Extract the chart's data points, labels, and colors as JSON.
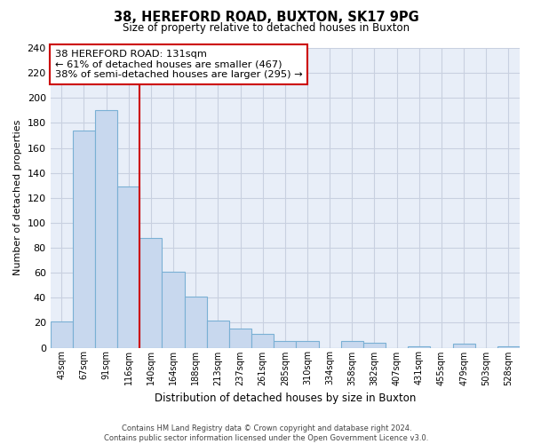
{
  "title": "38, HEREFORD ROAD, BUXTON, SK17 9PG",
  "subtitle": "Size of property relative to detached houses in Buxton",
  "xlabel": "Distribution of detached houses by size in Buxton",
  "ylabel": "Number of detached properties",
  "bar_labels": [
    "43sqm",
    "67sqm",
    "91sqm",
    "116sqm",
    "140sqm",
    "164sqm",
    "188sqm",
    "213sqm",
    "237sqm",
    "261sqm",
    "285sqm",
    "310sqm",
    "334sqm",
    "358sqm",
    "382sqm",
    "407sqm",
    "431sqm",
    "455sqm",
    "479sqm",
    "503sqm",
    "528sqm"
  ],
  "bar_heights": [
    21,
    174,
    190,
    129,
    88,
    61,
    41,
    22,
    15,
    11,
    5,
    5,
    0,
    5,
    4,
    0,
    1,
    0,
    3,
    0,
    1
  ],
  "bar_color": "#c8d8ee",
  "bar_edge_color": "#7ab0d4",
  "vline_x_index": 3.5,
  "vline_color": "#cc0000",
  "ylim": [
    0,
    240
  ],
  "yticks": [
    0,
    20,
    40,
    60,
    80,
    100,
    120,
    140,
    160,
    180,
    200,
    220,
    240
  ],
  "annotation_title": "38 HEREFORD ROAD: 131sqm",
  "annotation_line1": "← 61% of detached houses are smaller (467)",
  "annotation_line2": "38% of semi-detached houses are larger (295) →",
  "annotation_box_color": "#ffffff",
  "annotation_box_edge": "#cc0000",
  "footer_line1": "Contains HM Land Registry data © Crown copyright and database right 2024.",
  "footer_line2": "Contains public sector information licensed under the Open Government Licence v3.0.",
  "background_color": "#ffffff",
  "plot_bg_color": "#e8eef8",
  "grid_color": "#c8d0e0"
}
